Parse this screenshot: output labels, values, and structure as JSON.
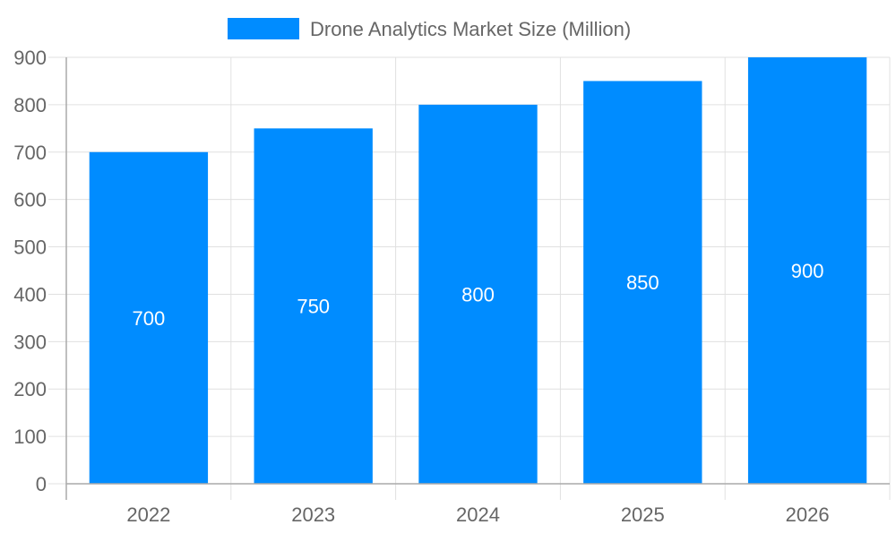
{
  "chart_data": {
    "type": "bar",
    "categories": [
      "2022",
      "2023",
      "2024",
      "2025",
      "2026"
    ],
    "series": [
      {
        "name": "Drone Analytics Market Size (Million)",
        "values": [
          700,
          750,
          800,
          850,
          900
        ],
        "color": "#008cff"
      }
    ],
    "yticks": [
      "0",
      "100",
      "200",
      "300",
      "400",
      "500",
      "600",
      "700",
      "800",
      "900"
    ],
    "ylim": [
      0,
      900
    ],
    "grid": true,
    "legend": "top-center",
    "data_labels": [
      "700",
      "750",
      "800",
      "850",
      "900"
    ]
  }
}
